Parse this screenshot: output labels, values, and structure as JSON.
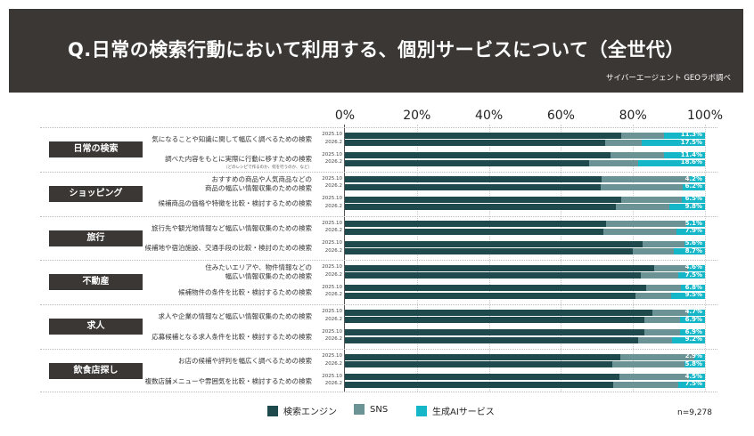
{
  "title": "Q.日常の検索行動において利用する、個別サービスについて（全世代）",
  "source": "サイバーエージェント GEOラボ調べ",
  "sample": "n=9,278",
  "chart_data": {
    "type": "bar",
    "stacked": "horizontal-100%",
    "xlim": [
      0,
      100
    ],
    "x_ticks": [
      "0%",
      "20%",
      "40%",
      "60%",
      "80%",
      "100%"
    ],
    "grid": true,
    "legend_position": "bottom",
    "colors": {
      "search": "#1f4a4d",
      "sns": "#6b9294",
      "ai": "#14b6c8"
    },
    "series_names": [
      "検索エンジン",
      "SNS",
      "生成AIサービス"
    ],
    "groups": [
      {
        "category": "日常の検索",
        "questions": [
          {
            "text": [
              "気になることや知識に関して幅広く調べるための検索"
            ],
            "rows": [
              {
                "year": "2025.10",
                "search": 76.7,
                "sns": 12.0,
                "ai": 11.3,
                "ai_label": "11.3%"
              },
              {
                "year": "2026.2",
                "search": 72.3,
                "sns": 10.2,
                "ai": 17.5,
                "ai_label": "17.5%"
              }
            ]
          },
          {
            "text": [
              "調べた内容をもとに実際に行動に移すための検索"
            ],
            "note": "（どのレシピで作るのか、何を行うのか、など）",
            "rows": [
              {
                "year": "2025.10",
                "search": 73.8,
                "sns": 14.8,
                "ai": 11.4,
                "ai_label": "11.4%"
              },
              {
                "year": "2026.2",
                "search": 67.8,
                "sns": 13.6,
                "ai": 18.6,
                "ai_label": "18.6%"
              }
            ]
          }
        ]
      },
      {
        "category": "ショッピング",
        "questions": [
          {
            "text": [
              "おすすめの商品や人気商品などの",
              "商品の幅広い情報収集のための検索"
            ],
            "rows": [
              {
                "year": "2025.10",
                "search": 71.3,
                "sns": 24.5,
                "ai": 4.2,
                "ai_label": "4.2%"
              },
              {
                "year": "2026.2",
                "search": 71.0,
                "sns": 22.8,
                "ai": 6.2,
                "ai_label": "6.2%"
              }
            ]
          },
          {
            "text": [
              "候補商品の価格や特徴を比較・検討するための検索"
            ],
            "rows": [
              {
                "year": "2025.10",
                "search": 76.8,
                "sns": 16.7,
                "ai": 6.5,
                "ai_label": "6.5%"
              },
              {
                "year": "2026.2",
                "search": 75.3,
                "sns": 14.9,
                "ai": 9.8,
                "ai_label": "9.8%"
              }
            ]
          }
        ]
      },
      {
        "category": "旅行",
        "questions": [
          {
            "text": [
              "旅行先や観光地情報など幅広い情報収集のための検索"
            ],
            "rows": [
              {
                "year": "2025.10",
                "search": 72.5,
                "sns": 22.4,
                "ai": 5.1,
                "ai_label": "5.1%"
              },
              {
                "year": "2026.2",
                "search": 71.7,
                "sns": 20.4,
                "ai": 7.9,
                "ai_label": "7.9%"
              }
            ]
          },
          {
            "text": [
              "候補地や宿泊施設、交通手段の比較・検討のための検索"
            ],
            "rows": [
              {
                "year": "2025.10",
                "search": 82.7,
                "sns": 11.7,
                "ai": 5.6,
                "ai_label": "5.6%"
              },
              {
                "year": "2026.2",
                "search": 80.0,
                "sns": 11.3,
                "ai": 8.7,
                "ai_label": "8.7%"
              }
            ]
          }
        ]
      },
      {
        "category": "不動産",
        "questions": [
          {
            "text": [
              "住みたいエリアや、物件情報などの",
              "幅広い情報収集のための検索"
            ],
            "rows": [
              {
                "year": "2025.10",
                "search": 85.8,
                "sns": 9.6,
                "ai": 4.6,
                "ai_label": "4.6%"
              },
              {
                "year": "2026.2",
                "search": 82.2,
                "sns": 10.3,
                "ai": 7.5,
                "ai_label": "7.5%"
              }
            ]
          },
          {
            "text": [
              "候補物件の条件を比較・検討するための検索"
            ],
            "rows": [
              {
                "year": "2025.10",
                "search": 83.7,
                "sns": 9.5,
                "ai": 6.8,
                "ai_label": "6.8%"
              },
              {
                "year": "2026.2",
                "search": 80.8,
                "sns": 9.7,
                "ai": 9.5,
                "ai_label": "9.5%"
              }
            ]
          }
        ]
      },
      {
        "category": "求人",
        "questions": [
          {
            "text": [
              "求人や企業の情報など幅広い情報収集のための検索"
            ],
            "rows": [
              {
                "year": "2025.10",
                "search": 85.4,
                "sns": 9.9,
                "ai": 4.7,
                "ai_label": "4.7%"
              },
              {
                "year": "2026.2",
                "search": 83.2,
                "sns": 9.9,
                "ai": 6.9,
                "ai_label": "6.9%"
              }
            ]
          },
          {
            "text": [
              "応募候補となる求人条件を比較・検討するための検索"
            ],
            "rows": [
              {
                "year": "2025.10",
                "search": 83.2,
                "sns": 9.9,
                "ai": 6.9,
                "ai_label": "6.9%"
              },
              {
                "year": "2026.2",
                "search": 81.4,
                "sns": 9.4,
                "ai": 9.2,
                "ai_label": "9.2%"
              }
            ]
          }
        ]
      },
      {
        "category": "飲食店探し",
        "questions": [
          {
            "text": [
              "お店の候補や評判を幅広く調べるための検索"
            ],
            "rows": [
              {
                "year": "2025.10",
                "search": 76.5,
                "sns": 20.6,
                "ai": 2.9,
                "ai_label": "2.9%"
              },
              {
                "year": "2026.2",
                "search": 74.3,
                "sns": 19.9,
                "ai": 5.8,
                "ai_label": "5.8%"
              }
            ]
          },
          {
            "text": [
              "複数店舗メニューや雰囲気を比較・検討するための検索"
            ],
            "rows": [
              {
                "year": "2025.10",
                "search": 76.2,
                "sns": 19.3,
                "ai": 4.5,
                "ai_label": "4.5%"
              },
              {
                "year": "2026.2",
                "search": 74.4,
                "sns": 18.1,
                "ai": 7.5,
                "ai_label": "7.5%"
              }
            ]
          }
        ]
      }
    ]
  }
}
